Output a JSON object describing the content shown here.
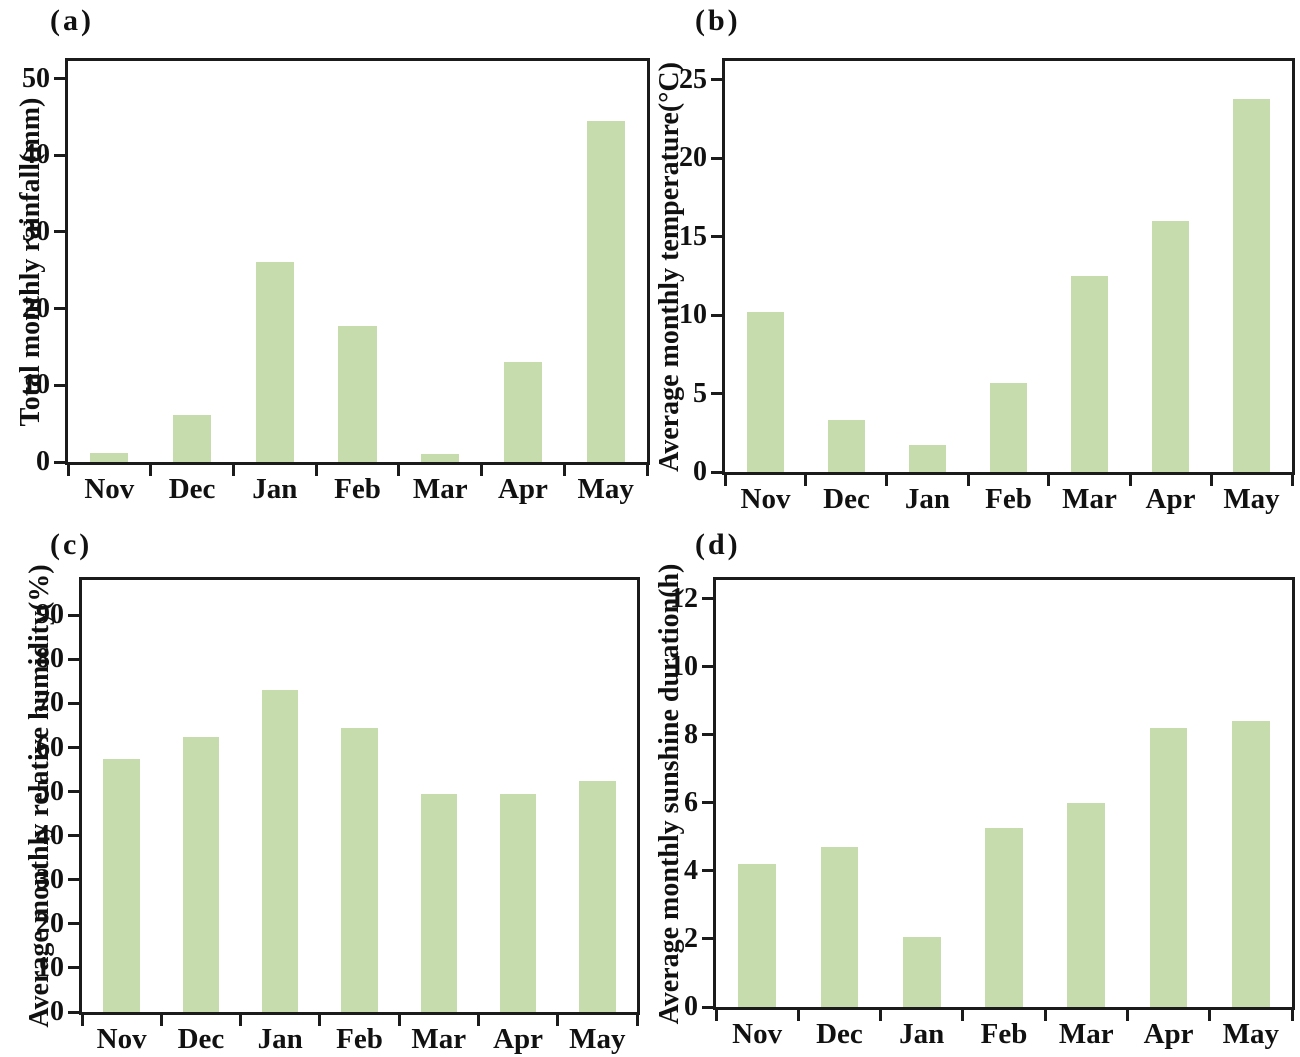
{
  "bar_color": "#c6dcac",
  "axis_color": "#1b1b1b",
  "months": [
    "Nov",
    "Dec",
    "Jan",
    "Feb",
    "Mar",
    "Apr",
    "May"
  ],
  "chart_data": [
    {
      "type": "bar",
      "panel_label": "(a)",
      "title": "",
      "xlabel": "",
      "ylabel": "Total monthly rainfall(mm)",
      "categories": [
        "Nov",
        "Dec",
        "Jan",
        "Feb",
        "Mar",
        "Apr",
        "May"
      ],
      "values": [
        1.2,
        6.1,
        26.1,
        17.7,
        1.1,
        13.0,
        44.5
      ],
      "yticks": [
        0,
        10,
        20,
        30,
        40,
        50
      ],
      "ylim": [
        0,
        52.3
      ],
      "grid": false,
      "legend": null
    },
    {
      "type": "bar",
      "panel_label": "(b)",
      "title": "",
      "xlabel": "",
      "ylabel": "Average monthly temperature(°C)",
      "categories": [
        "Nov",
        "Dec",
        "Jan",
        "Feb",
        "Mar",
        "Apr",
        "May"
      ],
      "values": [
        10.2,
        3.3,
        1.7,
        5.7,
        12.5,
        16.0,
        23.8
      ],
      "yticks": [
        0,
        5,
        10,
        15,
        20,
        25
      ],
      "ylim": [
        0,
        26.2
      ],
      "grid": false,
      "legend": null
    },
    {
      "type": "bar",
      "panel_label": "(c)",
      "title": "",
      "xlabel": "",
      "ylabel": "Average monthly relative humidity(%)",
      "categories": [
        "Nov",
        "Dec",
        "Jan",
        "Feb",
        "Mar",
        "Apr",
        "May"
      ],
      "values": [
        57.5,
        62.5,
        73.0,
        64.5,
        49.5,
        49.5,
        52.5
      ],
      "yticks": [
        0,
        10,
        20,
        30,
        40,
        50,
        60,
        70,
        80,
        90
      ],
      "ylim": [
        0,
        98
      ],
      "grid": false,
      "legend": null
    },
    {
      "type": "bar",
      "panel_label": "(d)",
      "title": "",
      "xlabel": "",
      "ylabel": "Average monthly sunshine duration(h)",
      "categories": [
        "Nov",
        "Dec",
        "Jan",
        "Feb",
        "Mar",
        "Apr",
        "May"
      ],
      "values": [
        4.2,
        4.7,
        2.05,
        5.25,
        6.0,
        8.2,
        8.4
      ],
      "yticks": [
        0,
        2,
        4,
        6,
        8,
        10,
        12
      ],
      "ylim": [
        0,
        12.55
      ],
      "grid": false,
      "legend": null
    }
  ]
}
